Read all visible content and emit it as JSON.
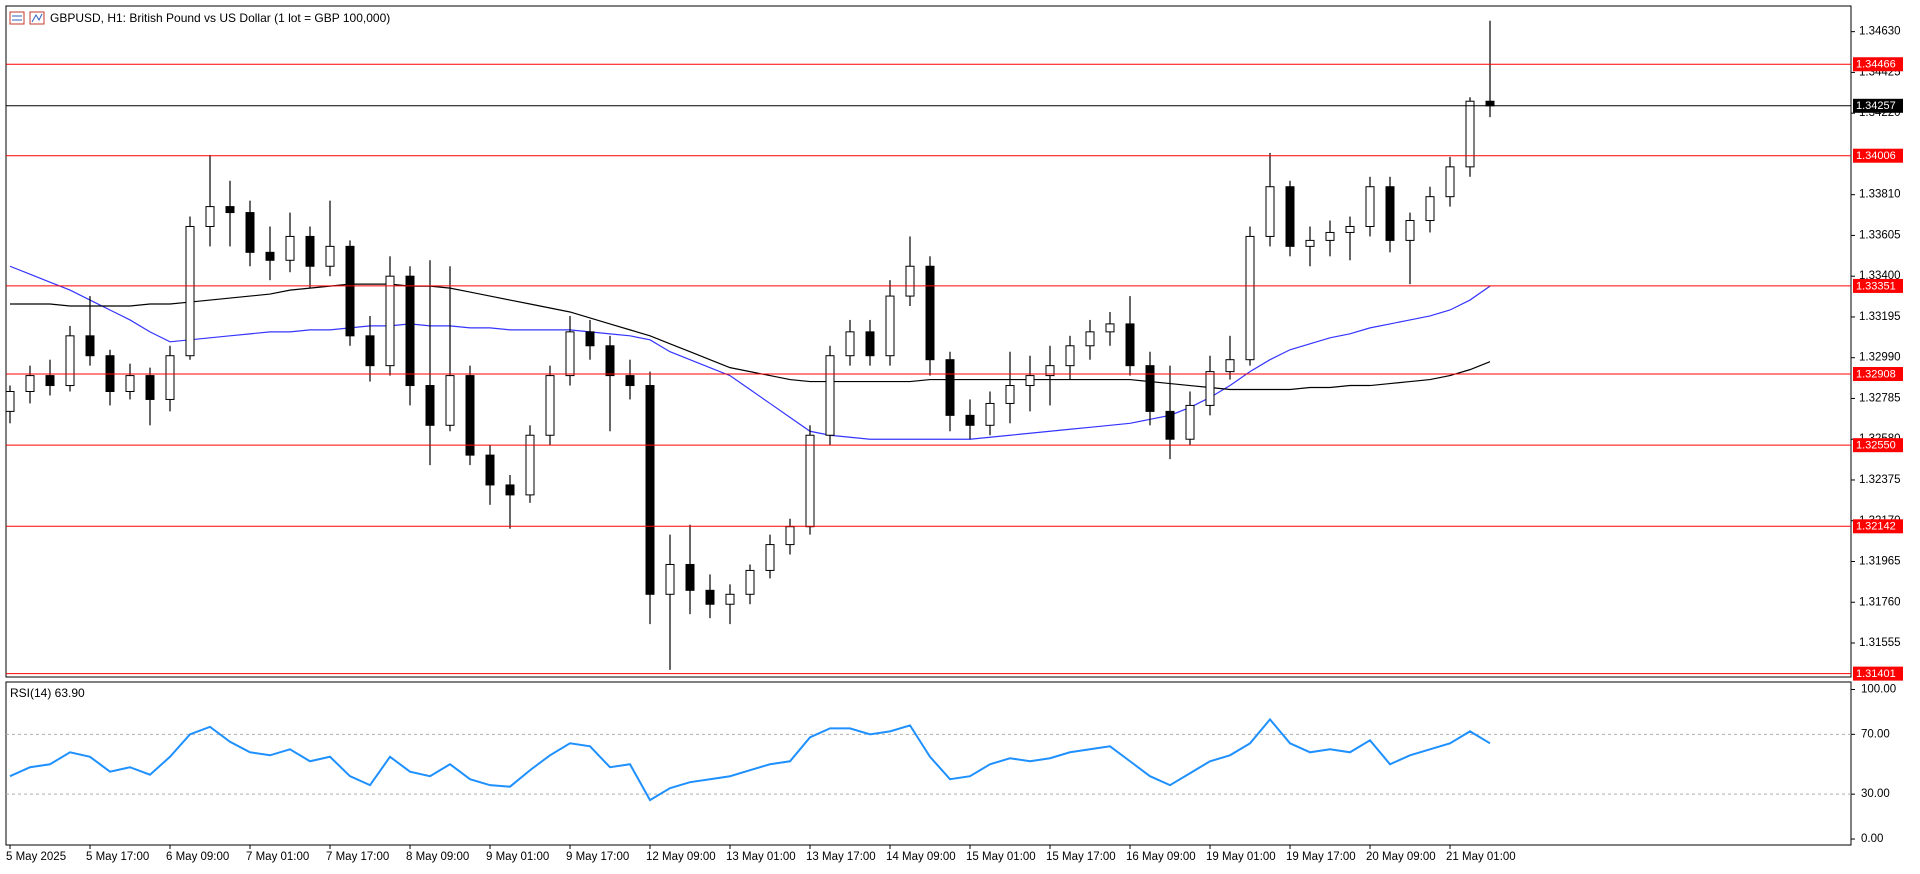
{
  "chart_data": [
    {
      "type": "candlestick",
      "title": "GBPUSD, H1:  British Pound vs US Dollar (1 lot = GBP 100,000)",
      "categories": [
        "5 May 2025",
        null,
        null,
        null,
        "5 May 17:00",
        null,
        null,
        null,
        "6 May 09:00",
        null,
        null,
        null,
        "7 May 01:00",
        null,
        null,
        null,
        "7 May 17:00",
        null,
        null,
        null,
        "8 May 09:00",
        null,
        null,
        null,
        "9 May 01:00",
        null,
        null,
        null,
        "9 May 17:00",
        null,
        null,
        null,
        "12 May 09:00",
        null,
        null,
        null,
        "13 May 01:00",
        null,
        null,
        null,
        "13 May 17:00",
        null,
        null,
        null,
        "14 May 09:00",
        null,
        null,
        null,
        "15 May 01:00",
        null,
        null,
        null,
        "15 May 17:00",
        null,
        null,
        null,
        "16 May 09:00",
        null,
        null,
        null,
        "19 May 01:00",
        null,
        null,
        null,
        "19 May 17:00",
        null,
        null,
        null,
        "20 May 09:00",
        null,
        null,
        null,
        "21 May 01:00",
        null,
        null
      ],
      "open": [
        1.3272,
        1.3282,
        1.329,
        1.3285,
        1.331,
        1.33,
        1.3282,
        1.329,
        1.3278,
        1.33,
        1.3365,
        1.3375,
        1.3372,
        1.3352,
        1.3348,
        1.336,
        1.3345,
        1.3355,
        1.331,
        1.3295,
        1.334,
        1.3285,
        1.3265,
        1.329,
        1.325,
        1.3235,
        1.323,
        1.326,
        1.329,
        1.3312,
        1.3305,
        1.329,
        1.3285,
        1.318,
        1.3195,
        1.3182,
        1.3175,
        1.318,
        1.3192,
        1.3205,
        1.3214,
        1.326,
        1.33,
        1.3312,
        1.33,
        1.333,
        1.3345,
        1.3298,
        1.327,
        1.3265,
        1.3276,
        1.3285,
        1.329,
        1.3295,
        1.3305,
        1.3312,
        1.3316,
        1.3295,
        1.3272,
        1.3258,
        1.3275,
        1.3292,
        1.3298,
        1.336,
        1.3385,
        1.3355,
        1.3358,
        1.3362,
        1.3365,
        1.3385,
        1.3358,
        1.3368,
        1.338,
        1.3395,
        1.3428
      ],
      "high": [
        1.3285,
        1.3295,
        1.3298,
        1.3315,
        1.333,
        1.3303,
        1.3296,
        1.3294,
        1.3305,
        1.337,
        1.3401,
        1.3388,
        1.3378,
        1.3365,
        1.3372,
        1.3365,
        1.3378,
        1.3358,
        1.332,
        1.335,
        1.3345,
        1.3348,
        1.3345,
        1.3295,
        1.3255,
        1.324,
        1.3265,
        1.3295,
        1.332,
        1.3318,
        1.331,
        1.3298,
        1.3292,
        1.321,
        1.3215,
        1.319,
        1.3185,
        1.3195,
        1.321,
        1.3218,
        1.3265,
        1.3305,
        1.3318,
        1.3318,
        1.3338,
        1.336,
        1.335,
        1.3302,
        1.3278,
        1.3282,
        1.3302,
        1.33,
        1.3305,
        1.331,
        1.3318,
        1.3322,
        1.333,
        1.3302,
        1.3295,
        1.3282,
        1.33,
        1.331,
        1.3365,
        1.3402,
        1.3388,
        1.3365,
        1.3368,
        1.337,
        1.339,
        1.339,
        1.3372,
        1.3385,
        1.34,
        1.343,
        1.34685
      ],
      "low": [
        1.3266,
        1.3276,
        1.328,
        1.3282,
        1.3295,
        1.3275,
        1.3278,
        1.3265,
        1.3272,
        1.3298,
        1.3355,
        1.3355,
        1.3345,
        1.3338,
        1.3342,
        1.3334,
        1.334,
        1.3305,
        1.3287,
        1.329,
        1.3275,
        1.3245,
        1.3262,
        1.3245,
        1.3225,
        1.3213,
        1.3226,
        1.3255,
        1.3285,
        1.3298,
        1.3262,
        1.3278,
        1.3165,
        1.3142,
        1.317,
        1.3168,
        1.3165,
        1.3175,
        1.3188,
        1.32,
        1.321,
        1.3255,
        1.3295,
        1.3295,
        1.3295,
        1.3325,
        1.329,
        1.3262,
        1.3258,
        1.326,
        1.3266,
        1.3272,
        1.3275,
        1.3288,
        1.3298,
        1.3305,
        1.329,
        1.3265,
        1.3248,
        1.3255,
        1.327,
        1.3288,
        1.3295,
        1.3355,
        1.335,
        1.3345,
        1.335,
        1.3348,
        1.336,
        1.3352,
        1.3336,
        1.3362,
        1.3375,
        1.339,
        1.342
      ],
      "close": [
        1.3282,
        1.329,
        1.3285,
        1.331,
        1.33,
        1.3282,
        1.329,
        1.3278,
        1.33,
        1.3365,
        1.3375,
        1.3372,
        1.3352,
        1.3348,
        1.336,
        1.3345,
        1.3355,
        1.331,
        1.3295,
        1.334,
        1.3285,
        1.3265,
        1.329,
        1.325,
        1.3235,
        1.323,
        1.326,
        1.329,
        1.3312,
        1.3305,
        1.329,
        1.3285,
        1.318,
        1.3195,
        1.3182,
        1.3175,
        1.318,
        1.3192,
        1.3205,
        1.3214,
        1.326,
        1.33,
        1.3312,
        1.33,
        1.333,
        1.3345,
        1.3298,
        1.327,
        1.3265,
        1.3276,
        1.3285,
        1.329,
        1.3295,
        1.3305,
        1.3312,
        1.3316,
        1.3295,
        1.3272,
        1.3258,
        1.3275,
        1.3292,
        1.3298,
        1.336,
        1.3385,
        1.3355,
        1.3358,
        1.3362,
        1.3365,
        1.3385,
        1.3358,
        1.3368,
        1.338,
        1.3395,
        1.3428,
        1.34257
      ],
      "up_color": "#ffffff",
      "down_color": "#000000",
      "wick_color": "#000000",
      "series": [
        {
          "color": "#3434ff",
          "values": [
            1.3345,
            1.3341,
            1.3337,
            1.3333,
            1.3328,
            1.3323,
            1.3318,
            1.3312,
            1.3307,
            1.3308,
            1.3309,
            1.331,
            1.3311,
            1.3312,
            1.3312,
            1.3313,
            1.3313,
            1.3314,
            1.3315,
            1.3315,
            1.3316,
            1.3315,
            1.3315,
            1.3314,
            1.3314,
            1.3313,
            1.3313,
            1.3313,
            1.3313,
            1.3312,
            1.3311,
            1.331,
            1.3308,
            1.3302,
            1.3298,
            1.3294,
            1.329,
            1.3283,
            1.3276,
            1.3269,
            1.3262,
            1.326,
            1.3259,
            1.3258,
            1.3258,
            1.3258,
            1.3258,
            1.3258,
            1.3258,
            1.3259,
            1.326,
            1.3261,
            1.3262,
            1.3263,
            1.3264,
            1.3265,
            1.3266,
            1.3268,
            1.327,
            1.3274,
            1.3279,
            1.3285,
            1.3292,
            1.3298,
            1.3303,
            1.3306,
            1.3309,
            1.3311,
            1.3314,
            1.3316,
            1.3318,
            1.332,
            1.3323,
            1.3328,
            1.3335
          ]
        },
        {
          "color": "#000000",
          "values": [
            1.3326,
            1.3326,
            1.3326,
            1.3325,
            1.3325,
            1.3325,
            1.3325,
            1.3326,
            1.3326,
            1.3327,
            1.3328,
            1.3329,
            1.333,
            1.3331,
            1.3333,
            1.3334,
            1.3335,
            1.3336,
            1.3336,
            1.3336,
            1.3335,
            1.3335,
            1.3334,
            1.3332,
            1.333,
            1.3328,
            1.3326,
            1.3324,
            1.3322,
            1.3319,
            1.3316,
            1.3313,
            1.331,
            1.3306,
            1.3302,
            1.3298,
            1.3294,
            1.3292,
            1.329,
            1.3288,
            1.3287,
            1.3287,
            1.3287,
            1.3287,
            1.3287,
            1.3287,
            1.3288,
            1.3288,
            1.3288,
            1.3288,
            1.3288,
            1.3288,
            1.3288,
            1.3288,
            1.3288,
            1.3288,
            1.3288,
            1.3287,
            1.3286,
            1.3285,
            1.3284,
            1.3283,
            1.3283,
            1.3283,
            1.3283,
            1.3284,
            1.3284,
            1.3285,
            1.3285,
            1.3286,
            1.3287,
            1.3288,
            1.329,
            1.3293,
            1.3297
          ]
        }
      ],
      "levels": [
        1.34466,
        1.34006,
        1.33351,
        1.32908,
        1.3255,
        1.32142,
        1.31401
      ],
      "level_labels": [
        "1.34466",
        "1.34006",
        "1.33351",
        "1.32908",
        "1.32550",
        "1.32142",
        "1.31401"
      ],
      "level_color": "#ff0000",
      "current_price": 1.34257,
      "current_color": "#000000",
      "ylim": [
        1.31384,
        1.34759
      ],
      "yticks": [
        {
          "value": 1.3463,
          "label": "1.34630"
        },
        1.34425,
        {
          "value": 1.3422,
          "label": "1.34220"
        },
        {
          "value": 1.3381,
          "label": "1.33810"
        },
        1.33605,
        {
          "value": 1.334,
          "label": "1.33400"
        },
        1.33195,
        {
          "value": 1.3299,
          "label": "1.32990"
        },
        1.32785,
        {
          "value": 1.3258,
          "label": "1.32580"
        },
        1.32375,
        {
          "value": 1.3217,
          "label": "1.32170"
        },
        1.31965,
        {
          "value": 1.3176,
          "label": "1.31760"
        },
        1.31555
      ]
    },
    {
      "type": "line",
      "title": "RSI(14) 63.90",
      "series": [
        {
          "color": "#1e90ff",
          "values": [
            42,
            48,
            50,
            58,
            55,
            45,
            48,
            43,
            55,
            70,
            75,
            65,
            58,
            56,
            60,
            52,
            55,
            42,
            36,
            55,
            45,
            42,
            50,
            40,
            36,
            35,
            46,
            56,
            64,
            62,
            48,
            50,
            26,
            34,
            38,
            40,
            42,
            46,
            50,
            52,
            68,
            74,
            74,
            70,
            72,
            76,
            55,
            40,
            42,
            50,
            54,
            52,
            54,
            58,
            60,
            62,
            52,
            42,
            36,
            44,
            52,
            56,
            64,
            80,
            64,
            58,
            60,
            58,
            66,
            50,
            56,
            60,
            64,
            72,
            64
          ]
        }
      ],
      "levels": [
        70,
        30
      ],
      "ylim": [
        -4,
        105
      ],
      "yticks": [
        {
          "value": 100,
          "label": "100.00"
        },
        {
          "value": 70,
          "label": "70.00"
        },
        {
          "value": 30,
          "label": "30.00"
        },
        {
          "value": 0,
          "label": "0.00"
        }
      ]
    }
  ]
}
